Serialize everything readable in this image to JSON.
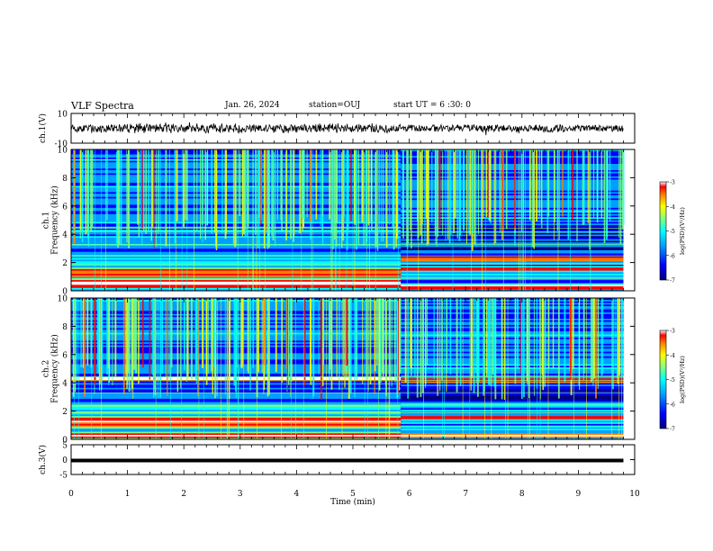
{
  "header": {
    "title": "VLF Spectra",
    "date": "Jan. 26, 2024",
    "station": "station=OUJ",
    "start": "start UT =  6 :30: 0"
  },
  "colors": {
    "trace": "#000000",
    "axis": "#000000",
    "colormap": [
      "#00007f",
      "#0000ff",
      "#00a0ff",
      "#00ffff",
      "#7fff7f",
      "#ffff00",
      "#ff7f00",
      "#ff0000",
      "#ffffff"
    ]
  },
  "chart_data": [
    {
      "type": "line",
      "name": "ch1-waveform",
      "ylabel": "ch.1(V)",
      "ylim": [
        -10,
        10
      ],
      "yticks": [
        "10",
        "-10"
      ],
      "x_range": [
        0,
        10
      ],
      "trace_mean": 0,
      "trace_note_visible": "dense black waveform",
      "grid": false
    },
    {
      "type": "heatmap",
      "name": "ch1-spectrogram",
      "ylabel": "ch.1\nFrequency (kHz)",
      "ylabel_lines": [
        "ch.1",
        "Frequency (kHz)"
      ],
      "ylim": [
        0,
        10
      ],
      "yticks": [
        0,
        2,
        4,
        6,
        8,
        10
      ],
      "x_range": [
        0,
        9.8
      ],
      "colorbar": {
        "label": "log(PSD)(V²/Hz)",
        "range": [
          -7,
          -3
        ],
        "ticks": [
          "-3",
          "-4",
          "-5",
          "-6",
          "-7"
        ]
      },
      "features": {
        "change_time_min": 5.85,
        "strong_bands_khz_before": [
          0.3,
          0.6,
          1.1,
          1.4
        ],
        "strong_bands_khz_after": [
          0.2,
          1.5,
          2.2
        ]
      }
    },
    {
      "type": "heatmap",
      "name": "ch2-spectrogram",
      "ylabel": "ch.2\nFrequency (kHz)",
      "ylabel_lines": [
        "ch.2",
        "Frequency (kHz)"
      ],
      "ylim": [
        0,
        10
      ],
      "yticks": [
        0,
        2,
        4,
        6,
        8,
        10
      ],
      "x_range": [
        0,
        9.8
      ],
      "colorbar": {
        "label": "log(PSD)(V²/Hz)",
        "range": [
          -7,
          -3
        ],
        "ticks": [
          "-3",
          "-4",
          "-5",
          "-6",
          "-7"
        ]
      },
      "features": {
        "change_time_min": 5.85,
        "strong_bands_khz_before": [
          0.2,
          1.0,
          1.3,
          4.2
        ],
        "strong_bands_khz_after": [
          0.2,
          1.5,
          4.1
        ]
      }
    },
    {
      "type": "line",
      "name": "ch3-waveform",
      "ylabel": "ch.3(V)",
      "ylim": [
        -5,
        5
      ],
      "yticks": [
        "5",
        "0",
        "-5"
      ],
      "x_range": [
        0,
        9.8
      ],
      "trace_level_v": -0.3,
      "grid": false
    }
  ],
  "xaxis": {
    "label": "Time (min)",
    "range": [
      0,
      10
    ],
    "ticks": [
      "0",
      "1",
      "2",
      "3",
      "4",
      "5",
      "6",
      "7",
      "8",
      "9",
      "10"
    ]
  }
}
